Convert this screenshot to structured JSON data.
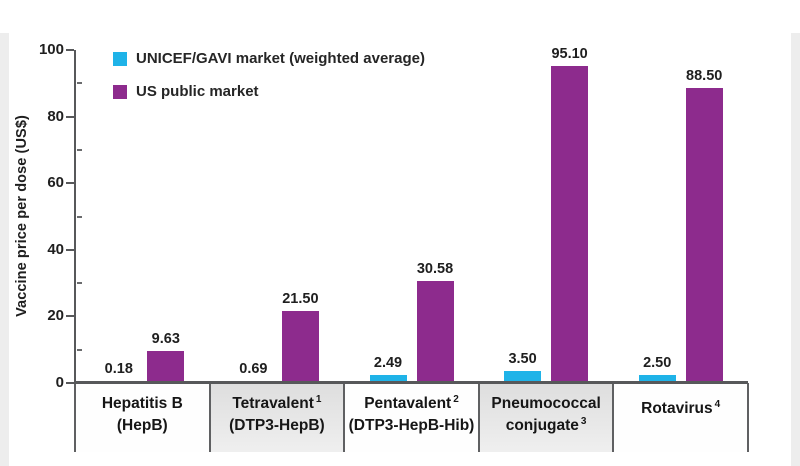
{
  "chart_data": {
    "type": "bar",
    "title": "",
    "ylabel": "Vaccine price per dose (US$)",
    "ylim": [
      0,
      100
    ],
    "yticks": [
      0,
      20,
      40,
      60,
      80,
      100
    ],
    "minor_ticks": [
      10,
      30,
      50,
      70,
      90
    ],
    "grid": false,
    "legend_position": "top-left-inside",
    "categories": [
      {
        "line1": "Hepatitis B",
        "sup1": "",
        "line2": "(HepB)",
        "sup2": "",
        "shaded": false
      },
      {
        "line1": "Tetravalent",
        "sup1": "1",
        "line2": "(DTP3-HepB)",
        "sup2": "",
        "shaded": true
      },
      {
        "line1": "Pentavalent",
        "sup1": "2",
        "line2": "(DTP3-HepB-Hib)",
        "sup2": "",
        "shaded": false
      },
      {
        "line1": "Pneumococcal",
        "sup1": "",
        "line2": "conjugate",
        "sup2": "3",
        "shaded": true
      },
      {
        "line1": "Rotavirus",
        "sup1": "4",
        "line2": "",
        "sup2": "",
        "shaded": false
      }
    ],
    "series": [
      {
        "name": "UNICEF/GAVI market (weighted average)",
        "color": "#1fb3e8",
        "values": [
          0.18,
          0.69,
          2.49,
          3.5,
          2.5
        ],
        "value_labels": [
          "0.18",
          "0.69",
          "2.49",
          "3.50",
          "2.50"
        ]
      },
      {
        "name": "US public market",
        "color": "#8d2b8d",
        "values": [
          9.63,
          21.5,
          30.58,
          95.1,
          88.5
        ],
        "value_labels": [
          "9.63",
          "21.50",
          "30.58",
          "95.10",
          "88.50"
        ]
      }
    ],
    "colors": {
      "axis": "#57585a",
      "text": "#1f1f1f",
      "shaded_band": "#e4e4e4",
      "page_edge": "#ededed"
    }
  }
}
